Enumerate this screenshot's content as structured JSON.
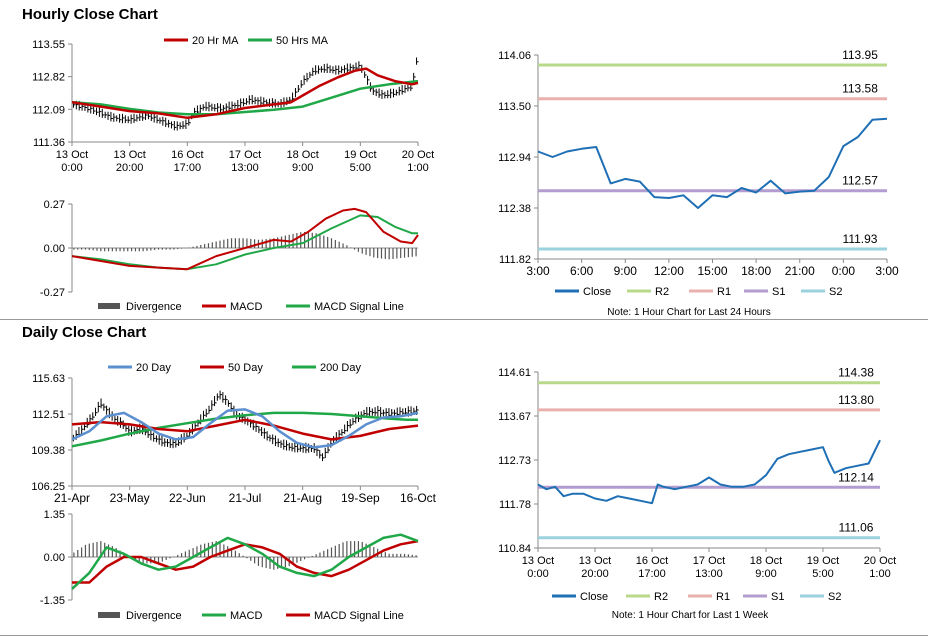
{
  "sections": {
    "hourly_title": "Hourly Close Chart",
    "daily_title": "Daily Close Chart"
  },
  "colors": {
    "ma_short": "#c00000",
    "ma_long": "#20a848",
    "close": "#1f6fb5",
    "r2": "#b9d98a",
    "r1": "#eab0ae",
    "s1": "#b39ccf",
    "s2": "#9ad2de",
    "divergence": "#555555",
    "candle": "#000000"
  },
  "chart_data": [
    {
      "id": "hourly_price",
      "type": "line",
      "legend": [
        "20 Hr MA",
        "50 Hrs MA"
      ],
      "legend_position": "top",
      "yticks": [
        "113.55",
        "112.82",
        "112.09",
        "111.36"
      ],
      "ylim": [
        111.36,
        113.55
      ],
      "xticks": [
        [
          "13 Oct",
          "0:00"
        ],
        [
          "13 Oct",
          "20:00"
        ],
        [
          "16 Oct",
          "17:00"
        ],
        [
          "17 Oct",
          "13:00"
        ],
        [
          "18 Oct",
          "9:00"
        ],
        [
          "19 Oct",
          "5:00"
        ],
        [
          "20 Oct",
          "1:00"
        ]
      ],
      "xlim": [
        0,
        6
      ],
      "price_path": [
        [
          0,
          112.2
        ],
        [
          0.3,
          112.1
        ],
        [
          0.5,
          112.0
        ],
        [
          0.7,
          111.9
        ],
        [
          1.0,
          111.85
        ],
        [
          1.3,
          111.95
        ],
        [
          1.6,
          111.8
        ],
        [
          1.8,
          111.7
        ],
        [
          2.0,
          111.75
        ],
        [
          2.1,
          112.0
        ],
        [
          2.3,
          112.15
        ],
        [
          2.6,
          112.1
        ],
        [
          2.9,
          112.2
        ],
        [
          3.1,
          112.3
        ],
        [
          3.3,
          112.25
        ],
        [
          3.6,
          112.2
        ],
        [
          3.8,
          112.3
        ],
        [
          4.0,
          112.7
        ],
        [
          4.2,
          112.95
        ],
        [
          4.4,
          113.0
        ],
        [
          4.6,
          112.95
        ],
        [
          4.8,
          113.0
        ],
        [
          5.0,
          113.05
        ],
        [
          5.1,
          112.8
        ],
        [
          5.2,
          112.5
        ],
        [
          5.4,
          112.4
        ],
        [
          5.6,
          112.45
        ],
        [
          5.8,
          112.55
        ],
        [
          5.9,
          112.6
        ],
        [
          6.0,
          113.35
        ]
      ],
      "series": [
        {
          "name": "20 Hr MA",
          "x": [
            0,
            0.5,
            1,
            1.5,
            2,
            2.5,
            3,
            3.5,
            3.8,
            4.0,
            4.3,
            4.6,
            4.9,
            5.1,
            5.3,
            5.6,
            5.9,
            6.0
          ],
          "values": [
            112.25,
            112.15,
            112.05,
            112.0,
            111.9,
            111.98,
            112.12,
            112.2,
            112.25,
            112.4,
            112.62,
            112.8,
            112.95,
            113.0,
            112.85,
            112.72,
            112.65,
            112.68
          ]
        },
        {
          "name": "50 Hrs MA",
          "x": [
            0,
            0.5,
            1,
            1.5,
            2,
            2.5,
            3,
            3.5,
            4,
            4.5,
            5,
            5.5,
            6.0
          ],
          "values": [
            112.25,
            112.2,
            112.1,
            112.02,
            111.98,
            111.98,
            112.03,
            112.08,
            112.15,
            112.35,
            112.55,
            112.65,
            112.72
          ]
        }
      ]
    },
    {
      "id": "hourly_macd",
      "type": "line",
      "legend": [
        "Divergence",
        "MACD",
        "MACD Signal Line"
      ],
      "legend_position": "bottom",
      "yticks": [
        "0.27",
        "0.00",
        "-0.27"
      ],
      "ylim": [
        -0.27,
        0.27
      ],
      "xlim": [
        0,
        6
      ],
      "divergence": {
        "x": [
          0,
          0.25,
          0.5,
          0.75,
          1,
          1.25,
          1.5,
          1.75,
          2,
          2.25,
          2.5,
          2.75,
          3,
          3.25,
          3.5,
          3.75,
          4,
          4.25,
          4.5,
          4.75,
          5,
          5.25,
          5.5,
          5.75,
          6
        ],
        "values": [
          -0.01,
          -0.01,
          -0.02,
          -0.02,
          -0.02,
          -0.02,
          -0.01,
          -0.01,
          0.0,
          0.02,
          0.04,
          0.06,
          0.06,
          0.05,
          0.06,
          0.08,
          0.1,
          0.09,
          0.06,
          0.02,
          -0.03,
          -0.06,
          -0.07,
          -0.06,
          -0.05
        ]
      },
      "series": [
        {
          "name": "MACD",
          "x": [
            0,
            0.5,
            1,
            1.5,
            2,
            2.5,
            3,
            3.5,
            3.8,
            4.1,
            4.4,
            4.7,
            4.9,
            5.1,
            5.4,
            5.7,
            5.9,
            6.0
          ],
          "values": [
            -0.05,
            -0.08,
            -0.11,
            -0.12,
            -0.13,
            -0.05,
            0.0,
            0.05,
            0.04,
            0.1,
            0.18,
            0.23,
            0.24,
            0.22,
            0.1,
            0.04,
            0.03,
            0.08
          ]
        },
        {
          "name": "MACD Signal Line",
          "x": [
            0,
            0.5,
            1,
            1.5,
            2,
            2.5,
            3,
            3.5,
            4,
            4.5,
            5,
            5.3,
            5.6,
            5.9,
            6.0
          ],
          "values": [
            -0.05,
            -0.07,
            -0.1,
            -0.12,
            -0.13,
            -0.1,
            -0.04,
            0.0,
            0.03,
            0.12,
            0.2,
            0.19,
            0.13,
            0.09,
            0.09
          ]
        }
      ]
    },
    {
      "id": "hourly_close",
      "type": "line",
      "legend": [
        "Close",
        "R2",
        "R1",
        "S1",
        "S2"
      ],
      "legend_position": "bottom",
      "yticks": [
        "114.06",
        "113.50",
        "112.94",
        "112.38",
        "111.82"
      ],
      "ylim": [
        111.82,
        114.06
      ],
      "xticks": [
        "3:00",
        "6:00",
        "9:00",
        "12:00",
        "15:00",
        "18:00",
        "21:00",
        "0:00",
        "3:00"
      ],
      "xlim": [
        0,
        24
      ],
      "levels": [
        {
          "name": "R2",
          "value": 113.95,
          "label": "113.95"
        },
        {
          "name": "R1",
          "value": 113.58,
          "label": "113.58"
        },
        {
          "name": "S1",
          "value": 112.57,
          "label": "112.57"
        },
        {
          "name": "S2",
          "value": 111.93,
          "label": "111.93"
        }
      ],
      "series": [
        {
          "name": "Close",
          "x": [
            0,
            1,
            2,
            3,
            4,
            5,
            6,
            7,
            8,
            9,
            10,
            11,
            12,
            13,
            14,
            15,
            16,
            17,
            18,
            19,
            20,
            21,
            22,
            23,
            24
          ],
          "values": [
            113.0,
            112.94,
            113.0,
            113.03,
            113.05,
            112.65,
            112.7,
            112.67,
            112.5,
            112.49,
            112.52,
            112.38,
            112.52,
            112.5,
            112.6,
            112.55,
            112.68,
            112.54,
            112.56,
            112.57,
            112.72,
            113.06,
            113.16,
            113.35,
            113.36
          ]
        }
      ],
      "note": "Note: 1 Hour Chart for Last 24 Hours"
    },
    {
      "id": "daily_price",
      "type": "line",
      "legend": [
        "20 Day",
        "50 Day",
        "200 Day"
      ],
      "legend_position": "top",
      "yticks": [
        "115.63",
        "112.51",
        "109.38",
        "106.25"
      ],
      "ylim": [
        106.25,
        115.63
      ],
      "xticks": [
        "21-Apr",
        "23-May",
        "22-Jun",
        "21-Jul",
        "21-Aug",
        "19-Sep",
        "16-Oct"
      ],
      "xlim": [
        0,
        6
      ],
      "price_path": [
        [
          0,
          110.3
        ],
        [
          0.15,
          111.0
        ],
        [
          0.35,
          112.2
        ],
        [
          0.5,
          113.4
        ],
        [
          0.6,
          112.8
        ],
        [
          0.75,
          112.0
        ],
        [
          0.9,
          111.5
        ],
        [
          1.0,
          110.9
        ],
        [
          1.2,
          111.2
        ],
        [
          1.4,
          110.5
        ],
        [
          1.6,
          110.0
        ],
        [
          1.8,
          109.9
        ],
        [
          2.0,
          110.6
        ],
        [
          2.2,
          111.8
        ],
        [
          2.4,
          113.0
        ],
        [
          2.55,
          114.2
        ],
        [
          2.7,
          113.5
        ],
        [
          2.85,
          112.4
        ],
        [
          3.0,
          112.0
        ],
        [
          3.2,
          111.3
        ],
        [
          3.4,
          110.5
        ],
        [
          3.6,
          109.9
        ],
        [
          3.8,
          109.6
        ],
        [
          4.0,
          109.5
        ],
        [
          4.2,
          109.5
        ],
        [
          4.35,
          108.7
        ],
        [
          4.5,
          110.0
        ],
        [
          4.7,
          111.0
        ],
        [
          4.9,
          112.0
        ],
        [
          5.1,
          112.6
        ],
        [
          5.3,
          112.7
        ],
        [
          5.5,
          112.5
        ],
        [
          5.7,
          112.6
        ],
        [
          5.9,
          112.7
        ],
        [
          6.0,
          112.8
        ]
      ],
      "series": [
        {
          "name": "20 Day",
          "x": [
            0,
            0.3,
            0.6,
            0.9,
            1.2,
            1.5,
            1.8,
            2.1,
            2.4,
            2.7,
            3.0,
            3.3,
            3.6,
            3.9,
            4.2,
            4.5,
            4.8,
            5.1,
            5.4,
            5.7,
            6.0
          ],
          "values": [
            110.3,
            111.0,
            112.3,
            112.6,
            111.8,
            110.8,
            110.3,
            110.5,
            111.7,
            112.8,
            112.9,
            112.3,
            111.0,
            110.0,
            109.6,
            109.8,
            110.6,
            111.6,
            112.2,
            112.3,
            112.6
          ]
        },
        {
          "name": "50 Day",
          "x": [
            0,
            0.5,
            1.0,
            1.5,
            2.0,
            2.5,
            3.0,
            3.5,
            4.0,
            4.5,
            5.0,
            5.5,
            6.0
          ],
          "values": [
            111.6,
            111.8,
            111.6,
            111.2,
            111.0,
            111.5,
            112.0,
            111.5,
            110.8,
            110.3,
            110.6,
            111.2,
            111.5
          ]
        },
        {
          "name": "200 Day",
          "x": [
            0,
            0.5,
            1.0,
            1.5,
            2.0,
            2.5,
            3.0,
            3.5,
            4.0,
            4.5,
            5.0,
            5.5,
            5.8,
            6.0
          ],
          "values": [
            109.7,
            110.2,
            110.8,
            111.3,
            111.7,
            112.1,
            112.4,
            112.6,
            112.6,
            112.5,
            112.3,
            112.1,
            112.0,
            112.0
          ]
        }
      ]
    },
    {
      "id": "daily_macd",
      "type": "line",
      "legend": [
        "Divergence",
        "MACD",
        "MACD Signal Line"
      ],
      "legend_position": "bottom",
      "yticks": [
        "1.35",
        "0.00",
        "-1.35"
      ],
      "ylim": [
        -1.35,
        1.35
      ],
      "xlim": [
        0,
        6
      ],
      "divergence": {
        "x": [
          0,
          0.25,
          0.5,
          0.75,
          1,
          1.25,
          1.5,
          1.75,
          2,
          2.25,
          2.5,
          2.75,
          3,
          3.25,
          3.5,
          3.75,
          4,
          4.25,
          4.5,
          4.75,
          5,
          5.25,
          5.5,
          5.75,
          6
        ],
        "values": [
          0.1,
          0.4,
          0.5,
          0.3,
          0.0,
          -0.2,
          -0.2,
          0.0,
          0.2,
          0.4,
          0.5,
          0.3,
          0.0,
          -0.3,
          -0.4,
          -0.3,
          -0.1,
          0.1,
          0.3,
          0.5,
          0.5,
          0.3,
          0.1,
          0.1,
          0.05
        ]
      },
      "series": [
        {
          "name": "MACD",
          "x": [
            0,
            0.3,
            0.6,
            0.9,
            1.2,
            1.5,
            1.8,
            2.1,
            2.4,
            2.7,
            3.0,
            3.3,
            3.6,
            3.9,
            4.2,
            4.5,
            4.8,
            5.1,
            5.4,
            5.7,
            6.0
          ],
          "values": [
            -1.0,
            -0.5,
            0.3,
            0.1,
            -0.2,
            -0.4,
            -0.3,
            0.0,
            0.3,
            0.6,
            0.4,
            0.1,
            -0.3,
            -0.5,
            -0.6,
            -0.4,
            0.0,
            0.3,
            0.6,
            0.7,
            0.5
          ]
        },
        {
          "name": "MACD Signal Line",
          "x": [
            0,
            0.3,
            0.6,
            0.9,
            1.2,
            1.5,
            1.8,
            2.1,
            2.4,
            2.7,
            3.0,
            3.3,
            3.6,
            3.9,
            4.2,
            4.5,
            4.8,
            5.1,
            5.4,
            5.7,
            6.0
          ],
          "values": [
            -0.8,
            -0.8,
            -0.3,
            0.0,
            0.0,
            -0.2,
            -0.4,
            -0.3,
            0.0,
            0.2,
            0.4,
            0.3,
            0.1,
            -0.3,
            -0.5,
            -0.6,
            -0.4,
            -0.1,
            0.2,
            0.4,
            0.5
          ]
        }
      ]
    },
    {
      "id": "daily_close",
      "type": "line",
      "legend": [
        "Close",
        "R2",
        "R1",
        "S1",
        "S2"
      ],
      "legend_position": "bottom",
      "yticks": [
        "114.61",
        "113.67",
        "112.73",
        "111.78",
        "110.84"
      ],
      "ylim": [
        110.84,
        114.61
      ],
      "xticks": [
        [
          "13 Oct",
          "0:00"
        ],
        [
          "13 Oct",
          "20:00"
        ],
        [
          "16 Oct",
          "17:00"
        ],
        [
          "17 Oct",
          "13:00"
        ],
        [
          "18 Oct",
          "9:00"
        ],
        [
          "19 Oct",
          "5:00"
        ],
        [
          "20 Oct",
          "1:00"
        ]
      ],
      "xlim": [
        0,
        6
      ],
      "levels": [
        {
          "name": "R2",
          "value": 114.38,
          "label": "114.38"
        },
        {
          "name": "R1",
          "value": 113.8,
          "label": "113.80"
        },
        {
          "name": "S1",
          "value": 112.14,
          "label": "112.14"
        },
        {
          "name": "S2",
          "value": 111.06,
          "label": "111.06"
        }
      ],
      "series": [
        {
          "name": "Close",
          "x": [
            0,
            0.15,
            0.3,
            0.45,
            0.6,
            0.8,
            1.0,
            1.2,
            1.4,
            1.6,
            1.8,
            2.0,
            2.1,
            2.2,
            2.4,
            2.6,
            2.8,
            3.0,
            3.2,
            3.4,
            3.6,
            3.8,
            4.0,
            4.2,
            4.4,
            4.6,
            4.8,
            5.0,
            5.1,
            5.2,
            5.4,
            5.6,
            5.8,
            6.0
          ],
          "values": [
            112.2,
            112.1,
            112.15,
            111.95,
            112.0,
            112.0,
            111.9,
            111.85,
            111.95,
            111.9,
            111.85,
            111.8,
            112.2,
            112.15,
            112.1,
            112.15,
            112.2,
            112.35,
            112.2,
            112.15,
            112.15,
            112.2,
            112.4,
            112.75,
            112.85,
            112.9,
            112.95,
            113.0,
            112.7,
            112.45,
            112.55,
            112.6,
            112.65,
            113.15
          ]
        }
      ],
      "note": "Note: 1 Hour Chart for Last 1 Week"
    }
  ]
}
